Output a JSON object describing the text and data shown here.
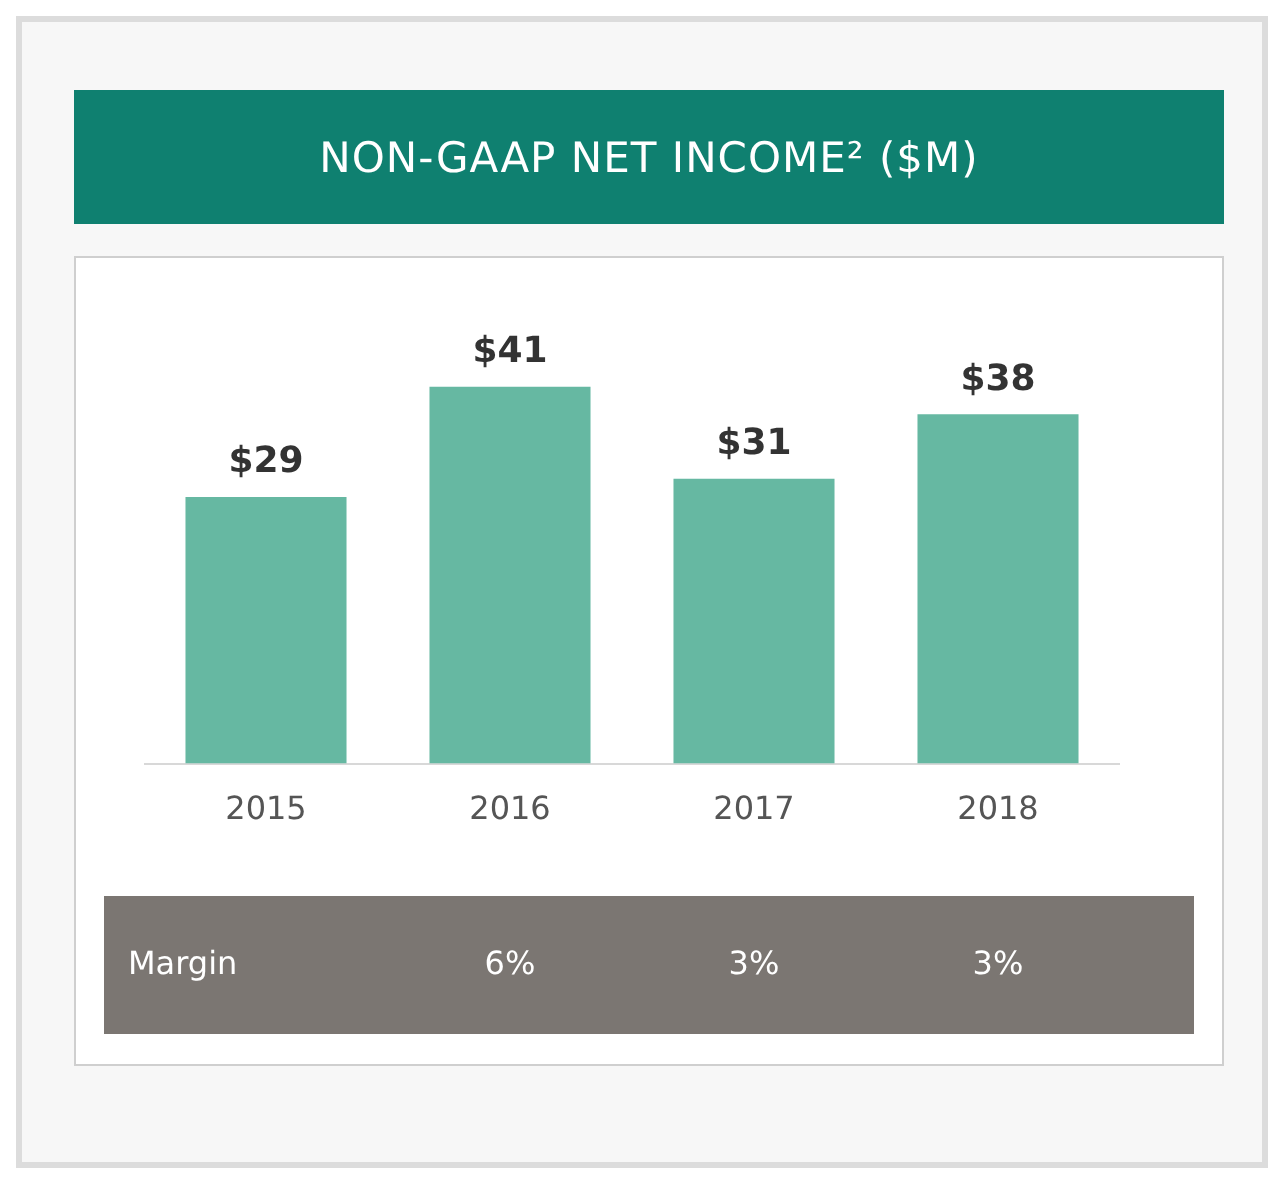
{
  "chart_data": {
    "type": "bar",
    "title": "NON-GAAP NET INCOME² ($M)",
    "categories": [
      "2015",
      "2016",
      "2017",
      "2018"
    ],
    "values": [
      29,
      41,
      31,
      38
    ],
    "value_labels": [
      "$29",
      "$41",
      "$31",
      "$38"
    ],
    "color": "#66b8a2",
    "grid": false,
    "legend": false,
    "tick_labels": "x",
    "annotations": [
      "Margin",
      "6%",
      "3%",
      "3%"
    ]
  }
}
